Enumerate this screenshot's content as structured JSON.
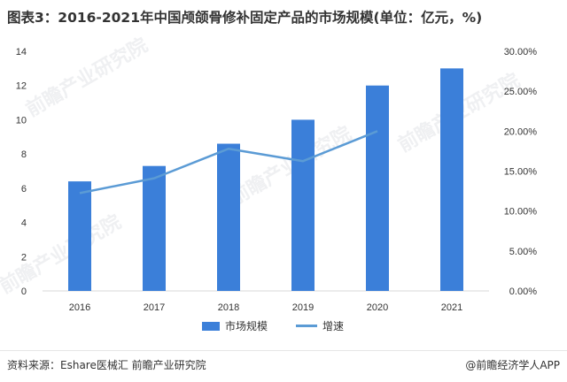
{
  "title": "图表3：2016-2021年中国颅颌骨修补固定产品的市场规模(单位：亿元，%)",
  "chart_data": {
    "type": "bar",
    "categories": [
      "2016",
      "2017",
      "2018",
      "2019",
      "2020",
      "2021"
    ],
    "series": [
      {
        "name": "市场规模",
        "type": "bar",
        "axis": "left",
        "color": "#3b7fd9",
        "values": [
          6.4,
          7.3,
          8.6,
          10.0,
          12.0,
          13.0
        ]
      },
      {
        "name": "增速",
        "type": "line",
        "axis": "right",
        "color": "#5b9bd5",
        "values": [
          0.1225,
          0.141,
          0.178,
          0.1625,
          0.2,
          null
        ]
      }
    ],
    "left_axis": {
      "ylim": [
        0,
        14
      ],
      "ticks": [
        "0",
        "2",
        "4",
        "6",
        "8",
        "10",
        "12",
        "14"
      ]
    },
    "right_axis": {
      "ylim": [
        0,
        0.3
      ],
      "ticks": [
        "0.00%",
        "5.00%",
        "10.00%",
        "15.00%",
        "20.00%",
        "25.00%",
        "30.00%"
      ]
    },
    "legend_position": "bottom",
    "grid": false
  },
  "watermark": "前瞻产业研究院",
  "footer": {
    "source": "资料来源：Eshare医械汇 前瞻产业研究院",
    "credit": "@前瞻经济学人APP"
  }
}
